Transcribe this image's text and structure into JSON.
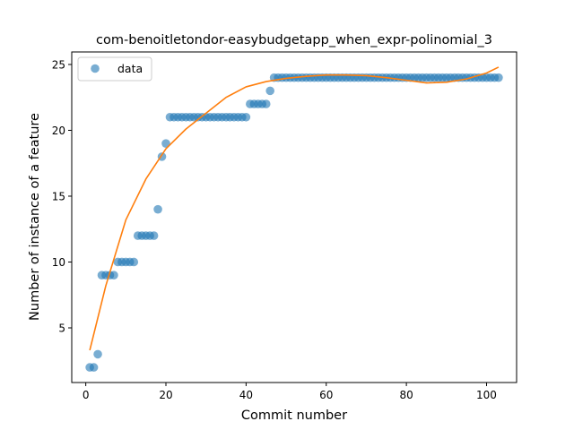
{
  "chart_data": {
    "type": "scatter",
    "title": "com-benoitletondor-easybudgetapp_when_expr-polinomial_3",
    "xlabel": "Commit number",
    "ylabel": "Number of instance of a feature",
    "xlim": [
      -3.5,
      107.5
    ],
    "ylim": [
      0.85,
      25.95
    ],
    "xticks": [
      0,
      20,
      40,
      60,
      80,
      100
    ],
    "yticks": [
      5,
      10,
      15,
      20,
      25
    ],
    "grid": false,
    "legend": {
      "position": "top-left",
      "entries": [
        "data"
      ]
    },
    "colors": {
      "data": "#1f77b4",
      "fit": "#ff7f0e"
    },
    "series": [
      {
        "name": "data",
        "kind": "scatter",
        "x": [
          1,
          2,
          3,
          4,
          5,
          6,
          7,
          8,
          9,
          10,
          11,
          12,
          13,
          14,
          15,
          16,
          17,
          18,
          19,
          20,
          21,
          22,
          23,
          24,
          25,
          26,
          27,
          28,
          29,
          30,
          31,
          32,
          33,
          34,
          35,
          36,
          37,
          38,
          39,
          40,
          41,
          42,
          43,
          44,
          45,
          46,
          47,
          48,
          49,
          50,
          51,
          52,
          53,
          54,
          55,
          56,
          57,
          58,
          59,
          60,
          61,
          62,
          63,
          64,
          65,
          66,
          67,
          68,
          69,
          70,
          71,
          72,
          73,
          74,
          75,
          76,
          77,
          78,
          79,
          80,
          81,
          82,
          83,
          84,
          85,
          86,
          87,
          88,
          89,
          90,
          91,
          92,
          93,
          94,
          95,
          96,
          97,
          98,
          99,
          100,
          101,
          102,
          103
        ],
        "y": [
          2,
          2,
          3,
          9,
          9,
          9,
          9,
          10,
          10,
          10,
          10,
          10,
          12,
          12,
          12,
          12,
          12,
          14,
          18,
          19,
          21,
          21,
          21,
          21,
          21,
          21,
          21,
          21,
          21,
          21,
          21,
          21,
          21,
          21,
          21,
          21,
          21,
          21,
          21,
          21,
          22,
          22,
          22,
          22,
          22,
          23,
          24,
          24,
          24,
          24,
          24,
          24,
          24,
          24,
          24,
          24,
          24,
          24,
          24,
          24,
          24,
          24,
          24,
          24,
          24,
          24,
          24,
          24,
          24,
          24,
          24,
          24,
          24,
          24,
          24,
          24,
          24,
          24,
          24,
          24,
          24,
          24,
          24,
          24,
          24,
          24,
          24,
          24,
          24,
          24,
          24,
          24,
          24,
          24,
          24,
          24,
          24,
          24,
          24,
          24,
          24,
          24,
          24
        ]
      },
      {
        "kind": "line",
        "x": [
          1,
          5,
          10,
          15,
          20,
          25,
          30,
          35,
          40,
          45,
          50,
          55,
          60,
          65,
          70,
          75,
          80,
          85,
          90,
          95,
          100,
          103
        ],
        "y": [
          3.3,
          8.2,
          13.2,
          16.3,
          18.6,
          20.1,
          21.3,
          22.5,
          23.3,
          23.7,
          23.95,
          24.1,
          24.2,
          24.2,
          24.15,
          24.0,
          23.8,
          23.6,
          23.65,
          23.9,
          24.35,
          24.8
        ]
      }
    ]
  }
}
